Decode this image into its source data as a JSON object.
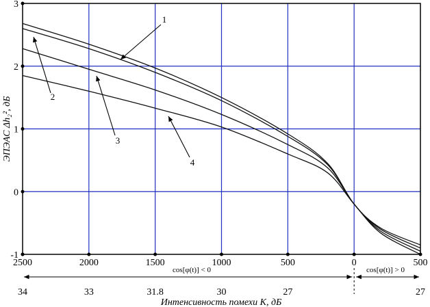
{
  "chart_data": {
    "type": "line",
    "xlabel": "Интенсивность помехи K, дБ",
    "ylabel": "ЭПЭАС Δh₂², дБ",
    "ylim": [
      -1,
      3
    ],
    "y_ticks": [
      "-1",
      "0",
      "1",
      "2",
      "3"
    ],
    "x_ticks_top": [
      "2500",
      "2000",
      "1500",
      "1000",
      "500",
      "0",
      "500"
    ],
    "x_ticks_bottom": [
      "34",
      "33",
      "31.8",
      "30",
      "27",
      "",
      "27"
    ],
    "region_neg_label": "cos[φ(t)] < 0",
    "region_pos_label": "cos[φ(t)] > 0",
    "grid": true,
    "x_positions": [
      -2500,
      -2000,
      -1500,
      -1000,
      -500,
      0,
      500
    ],
    "series": [
      {
        "name": "1",
        "x": [
          -2500,
          -2000,
          -1500,
          -1000,
          -500,
          -200,
          0,
          200,
          500
        ],
        "values": [
          2.68,
          2.35,
          1.97,
          1.5,
          0.92,
          0.45,
          -0.2,
          -0.58,
          -0.85
        ]
      },
      {
        "name": "2",
        "x": [
          -2500,
          -2000,
          -1500,
          -1000,
          -500,
          -200,
          0,
          200,
          500
        ],
        "values": [
          2.6,
          2.28,
          1.9,
          1.45,
          0.88,
          0.43,
          -0.2,
          -0.6,
          -0.9
        ]
      },
      {
        "name": "3",
        "x": [
          -2500,
          -2000,
          -1500,
          -1000,
          -500,
          -200,
          0,
          200,
          500
        ],
        "values": [
          2.28,
          1.95,
          1.62,
          1.23,
          0.75,
          0.38,
          -0.2,
          -0.63,
          -0.95
        ]
      },
      {
        "name": "4",
        "x": [
          -2500,
          -2000,
          -1500,
          -1000,
          -500,
          -200,
          0,
          200,
          500
        ],
        "values": [
          1.85,
          1.6,
          1.33,
          1.03,
          0.6,
          0.3,
          -0.2,
          -0.66,
          -1.0
        ]
      }
    ],
    "annotations": [
      "1",
      "2",
      "3",
      "4"
    ]
  }
}
